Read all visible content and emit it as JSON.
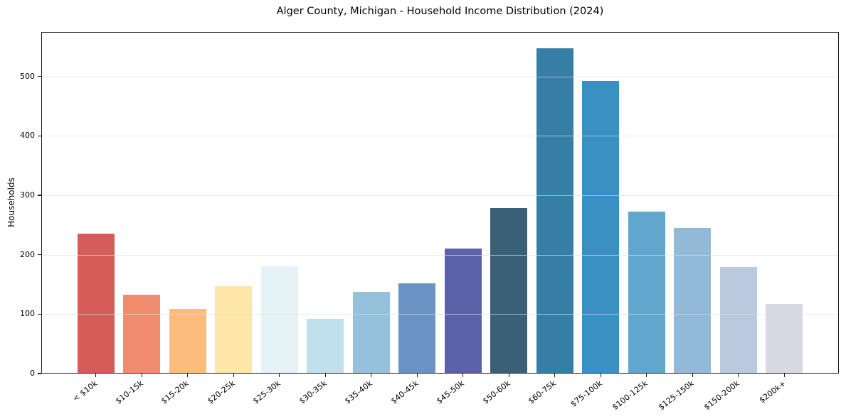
{
  "chart_data": {
    "type": "bar",
    "title": "Alger County, Michigan - Household Income Distribution (2024)",
    "xlabel": "",
    "ylabel": "Households",
    "categories": [
      "< $10k",
      "$10-15k",
      "$15-20k",
      "$20-25k",
      "$25-30k",
      "$30-35k",
      "$35-40k",
      "$40-45k",
      "$45-50k",
      "$50-60k",
      "$60-75k",
      "$75-100k",
      "$100-125k",
      "$125-150k",
      "$150-200k",
      "$200k+"
    ],
    "values": [
      235,
      133,
      109,
      147,
      180,
      92,
      137,
      152,
      210,
      278,
      548,
      493,
      272,
      245,
      179,
      117
    ],
    "bar_colors": [
      "#d65c5a",
      "#f28c6e",
      "#fabd7d",
      "#fde6a8",
      "#e5f2f6",
      "#c0e0ee",
      "#95c1dd",
      "#6b94c5",
      "#5c61a8",
      "#3a6077",
      "#377ea6",
      "#3a90c2",
      "#61a6cc",
      "#93b9d8",
      "#bbc9de",
      "#d8d9e5"
    ],
    "yticks": [
      0,
      100,
      200,
      300,
      400,
      500
    ],
    "ylim": [
      0,
      575
    ],
    "grid": "horizontal",
    "legend": "none"
  }
}
